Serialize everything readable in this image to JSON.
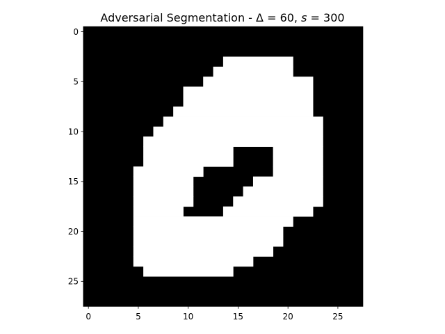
{
  "chart_data": {
    "type": "heatmap",
    "title": {
      "prefix": "Adversarial Segmentation - ",
      "delta_symbol": "Δ",
      "eq1": " = 60, ",
      "s_symbol": "s",
      "eq2": " = 300"
    },
    "xlabel": "",
    "ylabel": "",
    "rows": 28,
    "cols": 28,
    "xlim": [
      -0.5,
      27.5
    ],
    "ylim": [
      27.5,
      -0.5
    ],
    "x_ticks": [
      0,
      5,
      10,
      15,
      20,
      25
    ],
    "y_ticks": [
      0,
      5,
      10,
      15,
      20,
      25
    ],
    "colormap": {
      "0": "#000000",
      "1": "#ffffff"
    },
    "white_runs": [
      {
        "row": 3,
        "start": 14,
        "end": 20
      },
      {
        "row": 4,
        "start": 13,
        "end": 20
      },
      {
        "row": 5,
        "start": 12,
        "end": 22
      },
      {
        "row": 6,
        "start": 10,
        "end": 22
      },
      {
        "row": 7,
        "start": 10,
        "end": 22
      },
      {
        "row": 8,
        "start": 9,
        "end": 22
      },
      {
        "row": 9,
        "start": 8,
        "end": 23
      },
      {
        "row": 10,
        "start": 7,
        "end": 23
      },
      {
        "row": 11,
        "start": 6,
        "end": 23
      },
      {
        "row": 12,
        "start": 6,
        "end": 14
      },
      {
        "row": 12,
        "start": 19,
        "end": 23
      },
      {
        "row": 13,
        "start": 6,
        "end": 14
      },
      {
        "row": 13,
        "start": 19,
        "end": 23
      },
      {
        "row": 14,
        "start": 5,
        "end": 11
      },
      {
        "row": 14,
        "start": 19,
        "end": 23
      },
      {
        "row": 15,
        "start": 5,
        "end": 10
      },
      {
        "row": 15,
        "start": 17,
        "end": 23
      },
      {
        "row": 16,
        "start": 5,
        "end": 10
      },
      {
        "row": 16,
        "start": 16,
        "end": 23
      },
      {
        "row": 17,
        "start": 5,
        "end": 10
      },
      {
        "row": 17,
        "start": 15,
        "end": 23
      },
      {
        "row": 18,
        "start": 5,
        "end": 9
      },
      {
        "row": 18,
        "start": 14,
        "end": 22
      },
      {
        "row": 19,
        "start": 5,
        "end": 20
      },
      {
        "row": 20,
        "start": 5,
        "end": 19
      },
      {
        "row": 21,
        "start": 5,
        "end": 19
      },
      {
        "row": 22,
        "start": 5,
        "end": 18
      },
      {
        "row": 23,
        "start": 5,
        "end": 16
      },
      {
        "row": 24,
        "start": 6,
        "end": 14
      }
    ]
  }
}
